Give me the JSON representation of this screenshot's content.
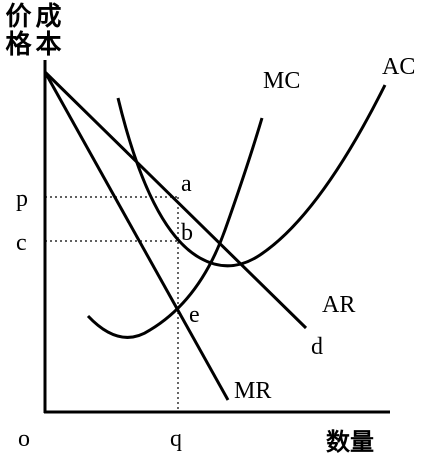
{
  "axes": {
    "y_label_price": "价格",
    "y_label_cost": "成本",
    "x_label": "数量",
    "origin": "o"
  },
  "curves": {
    "mc": "MC",
    "ac": "AC",
    "ar": "AR",
    "d": "d",
    "mr": "MR"
  },
  "points": {
    "a": "a",
    "b": "b",
    "e": "e"
  },
  "levels": {
    "p": "p",
    "c": "c",
    "q": "q"
  }
}
